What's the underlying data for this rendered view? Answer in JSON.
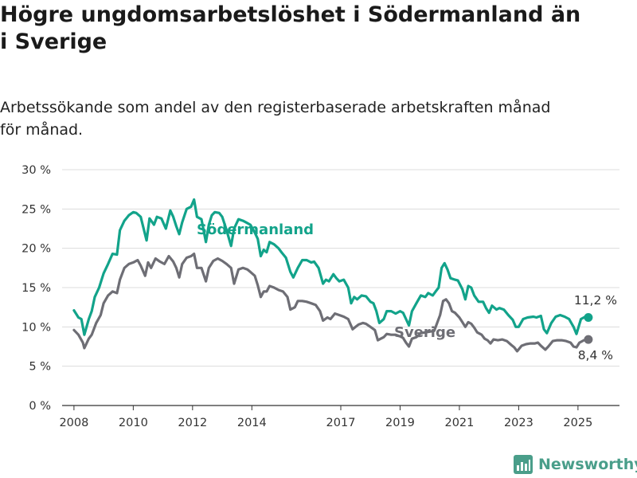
{
  "title_lines": [
    "Högre ungdomsarbetslöshet i Södermanland än",
    "i Sverige"
  ],
  "subtitle_lines": [
    "Arbetssökande som andel av den registerbaserade arbetskraften månad",
    "för månad."
  ],
  "brand": {
    "name": "Newsworthy",
    "icon": "newsworthy-bar-chart-icon"
  },
  "colors": {
    "sodermanland": "#12a38a",
    "sverige": "#6e6e75",
    "grid": "#dcdcdc",
    "axis": "#333333"
  },
  "chart_data": {
    "type": "line",
    "title": "Högre ungdomsarbetslöshet i Södermanland än i Sverige",
    "subtitle": "Arbetssökande som andel av den registerbaserade arbetskraften månad för månad.",
    "ylim": [
      0,
      30
    ],
    "y_ticks": [
      0,
      5,
      10,
      15,
      20,
      25,
      30
    ],
    "y_tick_labels": [
      "0 %",
      "5 %",
      "10 %",
      "15 %",
      "20 %",
      "25 %",
      "30 %"
    ],
    "x_range": [
      2007.6,
      2026.4
    ],
    "x_ticks": [
      2008,
      2010,
      2012,
      2014,
      2017,
      2019,
      2021,
      2023,
      2025
    ],
    "x_tick_labels": [
      "2008",
      "2010",
      "2012",
      "2014",
      "2017",
      "2019",
      "2021",
      "2023",
      "2025"
    ],
    "grid": true,
    "legend": "inline labels",
    "series": [
      {
        "name": "Södermanland",
        "color": "#12a38a",
        "end_label": "11,2 %",
        "points": [
          [
            2008.0,
            12.1
          ],
          [
            2008.15,
            11.2
          ],
          [
            2008.25,
            11.0
          ],
          [
            2008.35,
            9.0
          ],
          [
            2008.5,
            11.0
          ],
          [
            2008.6,
            12.0
          ],
          [
            2008.7,
            13.8
          ],
          [
            2008.85,
            15.0
          ],
          [
            2009.0,
            16.8
          ],
          [
            2009.15,
            18.0
          ],
          [
            2009.3,
            19.3
          ],
          [
            2009.45,
            19.2
          ],
          [
            2009.55,
            22.3
          ],
          [
            2009.7,
            23.5
          ],
          [
            2009.85,
            24.2
          ],
          [
            2010.0,
            24.6
          ],
          [
            2010.1,
            24.5
          ],
          [
            2010.25,
            24.0
          ],
          [
            2010.35,
            22.5
          ],
          [
            2010.45,
            21.0
          ],
          [
            2010.55,
            23.8
          ],
          [
            2010.7,
            23.0
          ],
          [
            2010.8,
            24.0
          ],
          [
            2010.95,
            23.8
          ],
          [
            2011.1,
            22.5
          ],
          [
            2011.25,
            24.8
          ],
          [
            2011.35,
            24.0
          ],
          [
            2011.45,
            22.8
          ],
          [
            2011.55,
            21.8
          ],
          [
            2011.65,
            23.3
          ],
          [
            2011.8,
            25.0
          ],
          [
            2011.95,
            25.3
          ],
          [
            2012.05,
            26.2
          ],
          [
            2012.15,
            24.0
          ],
          [
            2012.3,
            23.7
          ],
          [
            2012.45,
            20.8
          ],
          [
            2012.55,
            23.0
          ],
          [
            2012.65,
            24.2
          ],
          [
            2012.75,
            24.6
          ],
          [
            2012.9,
            24.5
          ],
          [
            2013.0,
            24.0
          ],
          [
            2013.15,
            22.3
          ],
          [
            2013.3,
            20.3
          ],
          [
            2013.4,
            22.5
          ],
          [
            2013.55,
            23.7
          ],
          [
            2013.7,
            23.5
          ],
          [
            2013.8,
            23.3
          ],
          [
            2013.95,
            23.0
          ],
          [
            2014.1,
            22.0
          ],
          [
            2014.2,
            21.2
          ],
          [
            2014.3,
            19.0
          ],
          [
            2014.4,
            19.8
          ],
          [
            2014.5,
            19.5
          ],
          [
            2014.6,
            20.8
          ],
          [
            2014.75,
            20.5
          ],
          [
            2014.9,
            20.0
          ],
          [
            2015.0,
            19.5
          ],
          [
            2015.15,
            18.8
          ],
          [
            2015.3,
            17.0
          ],
          [
            2015.4,
            16.3
          ],
          [
            2015.55,
            17.5
          ],
          [
            2015.7,
            18.5
          ],
          [
            2015.85,
            18.5
          ],
          [
            2016.0,
            18.2
          ],
          [
            2016.1,
            18.3
          ],
          [
            2016.25,
            17.5
          ],
          [
            2016.4,
            15.5
          ],
          [
            2016.5,
            16.0
          ],
          [
            2016.6,
            15.8
          ],
          [
            2016.75,
            16.7
          ],
          [
            2016.85,
            16.2
          ],
          [
            2016.95,
            15.8
          ],
          [
            2017.1,
            16.0
          ],
          [
            2017.25,
            15.0
          ],
          [
            2017.35,
            13.0
          ],
          [
            2017.45,
            13.8
          ],
          [
            2017.55,
            13.5
          ],
          [
            2017.7,
            14.0
          ],
          [
            2017.85,
            13.9
          ],
          [
            2018.0,
            13.2
          ],
          [
            2018.1,
            13.0
          ],
          [
            2018.2,
            12.0
          ],
          [
            2018.3,
            10.5
          ],
          [
            2018.45,
            11.0
          ],
          [
            2018.55,
            12.0
          ],
          [
            2018.7,
            12.0
          ],
          [
            2018.85,
            11.7
          ],
          [
            2019.0,
            12.0
          ],
          [
            2019.1,
            11.8
          ],
          [
            2019.2,
            11.0
          ],
          [
            2019.3,
            10.2
          ],
          [
            2019.4,
            12.0
          ],
          [
            2019.55,
            13.0
          ],
          [
            2019.7,
            14.0
          ],
          [
            2019.85,
            13.8
          ],
          [
            2019.95,
            14.3
          ],
          [
            2020.1,
            14.0
          ],
          [
            2020.2,
            14.5
          ],
          [
            2020.3,
            15.0
          ],
          [
            2020.4,
            17.5
          ],
          [
            2020.5,
            18.1
          ],
          [
            2020.6,
            17.3
          ],
          [
            2020.7,
            16.2
          ],
          [
            2020.85,
            16.0
          ],
          [
            2020.95,
            15.9
          ],
          [
            2021.1,
            14.8
          ],
          [
            2021.2,
            13.5
          ],
          [
            2021.3,
            15.2
          ],
          [
            2021.4,
            15.0
          ],
          [
            2021.5,
            14.0
          ],
          [
            2021.65,
            13.2
          ],
          [
            2021.8,
            13.2
          ],
          [
            2021.9,
            12.4
          ],
          [
            2022.0,
            11.8
          ],
          [
            2022.1,
            12.7
          ],
          [
            2022.25,
            12.2
          ],
          [
            2022.35,
            12.4
          ],
          [
            2022.5,
            12.2
          ],
          [
            2022.65,
            11.5
          ],
          [
            2022.8,
            10.9
          ],
          [
            2022.9,
            10.0
          ],
          [
            2023.0,
            10.0
          ],
          [
            2023.15,
            11.0
          ],
          [
            2023.3,
            11.2
          ],
          [
            2023.5,
            11.3
          ],
          [
            2023.6,
            11.2
          ],
          [
            2023.75,
            11.4
          ],
          [
            2023.85,
            9.7
          ],
          [
            2023.95,
            9.2
          ],
          [
            2024.1,
            10.5
          ],
          [
            2024.25,
            11.3
          ],
          [
            2024.4,
            11.5
          ],
          [
            2024.55,
            11.3
          ],
          [
            2024.7,
            11.0
          ],
          [
            2024.85,
            10.0
          ],
          [
            2024.95,
            9.1
          ],
          [
            2025.1,
            11.0
          ],
          [
            2025.25,
            11.3
          ],
          [
            2025.35,
            11.2
          ]
        ]
      },
      {
        "name": "Sverige",
        "color": "#6e6e75",
        "end_label": "8,4 %",
        "points": [
          [
            2008.0,
            9.6
          ],
          [
            2008.15,
            9.0
          ],
          [
            2008.3,
            8.0
          ],
          [
            2008.35,
            7.3
          ],
          [
            2008.5,
            8.5
          ],
          [
            2008.6,
            9.0
          ],
          [
            2008.75,
            10.5
          ],
          [
            2008.9,
            11.5
          ],
          [
            2009.0,
            13.0
          ],
          [
            2009.15,
            14.0
          ],
          [
            2009.3,
            14.5
          ],
          [
            2009.45,
            14.3
          ],
          [
            2009.55,
            16.0
          ],
          [
            2009.7,
            17.5
          ],
          [
            2009.85,
            18.0
          ],
          [
            2010.0,
            18.2
          ],
          [
            2010.15,
            18.5
          ],
          [
            2010.25,
            17.8
          ],
          [
            2010.4,
            16.5
          ],
          [
            2010.5,
            18.2
          ],
          [
            2010.6,
            17.5
          ],
          [
            2010.75,
            18.7
          ],
          [
            2010.9,
            18.3
          ],
          [
            2011.05,
            18.0
          ],
          [
            2011.2,
            19.0
          ],
          [
            2011.35,
            18.3
          ],
          [
            2011.45,
            17.5
          ],
          [
            2011.55,
            16.3
          ],
          [
            2011.65,
            18.0
          ],
          [
            2011.8,
            18.8
          ],
          [
            2011.95,
            19.0
          ],
          [
            2012.05,
            19.3
          ],
          [
            2012.15,
            17.5
          ],
          [
            2012.3,
            17.5
          ],
          [
            2012.45,
            15.8
          ],
          [
            2012.55,
            17.5
          ],
          [
            2012.7,
            18.4
          ],
          [
            2012.85,
            18.7
          ],
          [
            2013.0,
            18.4
          ],
          [
            2013.15,
            18.0
          ],
          [
            2013.3,
            17.5
          ],
          [
            2013.4,
            15.5
          ],
          [
            2013.55,
            17.3
          ],
          [
            2013.7,
            17.5
          ],
          [
            2013.85,
            17.3
          ],
          [
            2013.95,
            17.0
          ],
          [
            2014.1,
            16.5
          ],
          [
            2014.2,
            15.3
          ],
          [
            2014.3,
            13.8
          ],
          [
            2014.4,
            14.5
          ],
          [
            2014.5,
            14.5
          ],
          [
            2014.6,
            15.2
          ],
          [
            2014.75,
            15.0
          ],
          [
            2014.9,
            14.7
          ],
          [
            2015.05,
            14.5
          ],
          [
            2015.2,
            13.8
          ],
          [
            2015.3,
            12.2
          ],
          [
            2015.45,
            12.5
          ],
          [
            2015.55,
            13.3
          ],
          [
            2015.7,
            13.3
          ],
          [
            2015.85,
            13.2
          ],
          [
            2016.0,
            13.0
          ],
          [
            2016.15,
            12.8
          ],
          [
            2016.3,
            12.0
          ],
          [
            2016.4,
            10.8
          ],
          [
            2016.55,
            11.2
          ],
          [
            2016.65,
            11.0
          ],
          [
            2016.8,
            11.7
          ],
          [
            2016.95,
            11.5
          ],
          [
            2017.1,
            11.3
          ],
          [
            2017.25,
            11.0
          ],
          [
            2017.4,
            9.7
          ],
          [
            2017.5,
            10.0
          ],
          [
            2017.6,
            10.3
          ],
          [
            2017.75,
            10.5
          ],
          [
            2017.85,
            10.4
          ],
          [
            2018.0,
            10.0
          ],
          [
            2018.15,
            9.6
          ],
          [
            2018.25,
            8.3
          ],
          [
            2018.35,
            8.5
          ],
          [
            2018.45,
            8.7
          ],
          [
            2018.55,
            9.1
          ],
          [
            2018.7,
            9.0
          ],
          [
            2018.85,
            9.0
          ],
          [
            2019.0,
            8.8
          ],
          [
            2019.1,
            8.6
          ],
          [
            2019.2,
            8.0
          ],
          [
            2019.3,
            7.5
          ],
          [
            2019.4,
            8.5
          ],
          [
            2019.55,
            8.7
          ],
          [
            2019.7,
            9.2
          ],
          [
            2019.85,
            9.3
          ],
          [
            2020.0,
            9.4
          ],
          [
            2020.15,
            9.5
          ],
          [
            2020.25,
            10.5
          ],
          [
            2020.35,
            11.5
          ],
          [
            2020.45,
            13.3
          ],
          [
            2020.55,
            13.5
          ],
          [
            2020.65,
            13.0
          ],
          [
            2020.75,
            12.0
          ],
          [
            2020.85,
            11.8
          ],
          [
            2021.0,
            11.2
          ],
          [
            2021.1,
            10.6
          ],
          [
            2021.2,
            10.0
          ],
          [
            2021.3,
            10.6
          ],
          [
            2021.4,
            10.4
          ],
          [
            2021.5,
            9.9
          ],
          [
            2021.6,
            9.3
          ],
          [
            2021.75,
            9.0
          ],
          [
            2021.85,
            8.5
          ],
          [
            2021.95,
            8.3
          ],
          [
            2022.05,
            7.9
          ],
          [
            2022.15,
            8.4
          ],
          [
            2022.3,
            8.3
          ],
          [
            2022.45,
            8.4
          ],
          [
            2022.6,
            8.2
          ],
          [
            2022.75,
            7.7
          ],
          [
            2022.85,
            7.4
          ],
          [
            2022.95,
            6.9
          ],
          [
            2023.1,
            7.6
          ],
          [
            2023.25,
            7.8
          ],
          [
            2023.4,
            7.9
          ],
          [
            2023.55,
            7.9
          ],
          [
            2023.65,
            8.0
          ],
          [
            2023.75,
            7.6
          ],
          [
            2023.9,
            7.1
          ],
          [
            2024.0,
            7.5
          ],
          [
            2024.15,
            8.2
          ],
          [
            2024.3,
            8.3
          ],
          [
            2024.45,
            8.3
          ],
          [
            2024.6,
            8.2
          ],
          [
            2024.75,
            8.0
          ],
          [
            2024.85,
            7.5
          ],
          [
            2024.95,
            7.4
          ],
          [
            2025.05,
            8.0
          ],
          [
            2025.2,
            8.3
          ],
          [
            2025.35,
            8.4
          ]
        ]
      }
    ]
  }
}
